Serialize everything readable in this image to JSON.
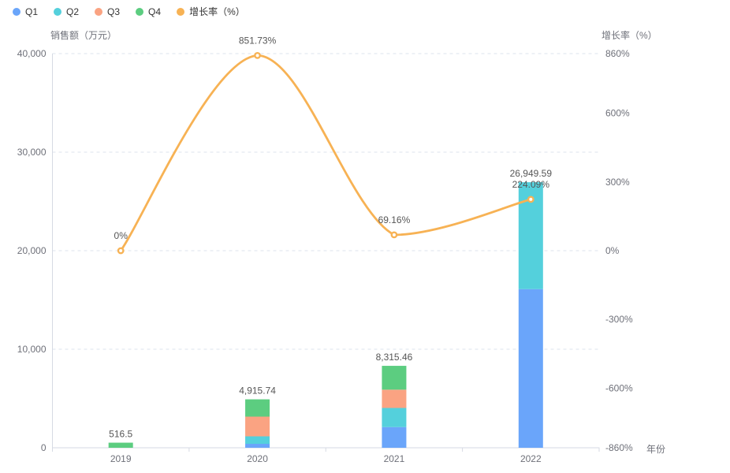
{
  "legend": {
    "items": [
      {
        "label": "Q1",
        "color": "#6AA5FA"
      },
      {
        "label": "Q2",
        "color": "#54D0DC"
      },
      {
        "label": "Q3",
        "color": "#FAA382"
      },
      {
        "label": "Q4",
        "color": "#5CCD80"
      },
      {
        "label": "增长率（%）",
        "color": "#F7B254"
      }
    ]
  },
  "chart_data": {
    "type": "bar",
    "subtype": "stacked-bar-with-line",
    "categories": [
      "2019",
      "2020",
      "2021",
      "2022"
    ],
    "series": [
      {
        "name": "Q1",
        "type": "bar",
        "color": "#6AA5FA",
        "values": [
          0,
          400,
          2100,
          16100
        ]
      },
      {
        "name": "Q2",
        "type": "bar",
        "color": "#54D0DC",
        "values": [
          0,
          760,
          1940,
          10849.59
        ]
      },
      {
        "name": "Q3",
        "type": "bar",
        "color": "#FAA382",
        "values": [
          0,
          2000,
          1855,
          0
        ]
      },
      {
        "name": "Q4",
        "type": "bar",
        "color": "#5CCD80",
        "values": [
          516.5,
          1755.74,
          2420.46,
          0
        ]
      }
    ],
    "stack_total_labels": [
      "516.5",
      "4,915.74",
      "8,315.46",
      "26,949.59"
    ],
    "stack_total_values": [
      516.5,
      4915.74,
      8315.46,
      26949.59
    ],
    "line_series": {
      "name": "增长率（%）",
      "type": "line",
      "color": "#F7B254",
      "values": [
        0,
        851.73,
        69.16,
        224.09
      ],
      "point_labels": [
        "0%",
        "851.73%",
        "69.16%",
        "224.09%"
      ]
    },
    "left_axis": {
      "name": "销售额（万元）",
      "min": 0,
      "max": 40000,
      "tick_values": [
        0,
        10000,
        20000,
        30000,
        40000
      ],
      "tick_labels": [
        "0",
        "10,000",
        "20,000",
        "30,000",
        "40,000"
      ]
    },
    "right_axis": {
      "name": "增长率（%）",
      "min": -860,
      "max": 860,
      "tick_values": [
        -860,
        -600,
        -300,
        0,
        300,
        600,
        860
      ],
      "tick_labels": [
        "-860%",
        "-600%",
        "-300%",
        "0%",
        "300%",
        "600%",
        "860%"
      ]
    },
    "x_axis": {
      "name": "年份"
    },
    "grid": {
      "dashed": true,
      "color": "#DEE3ED"
    },
    "colors": {
      "axis_line": "#D6DAE3",
      "tick_text": "#6E7079",
      "value_label_text": "#565656"
    }
  }
}
